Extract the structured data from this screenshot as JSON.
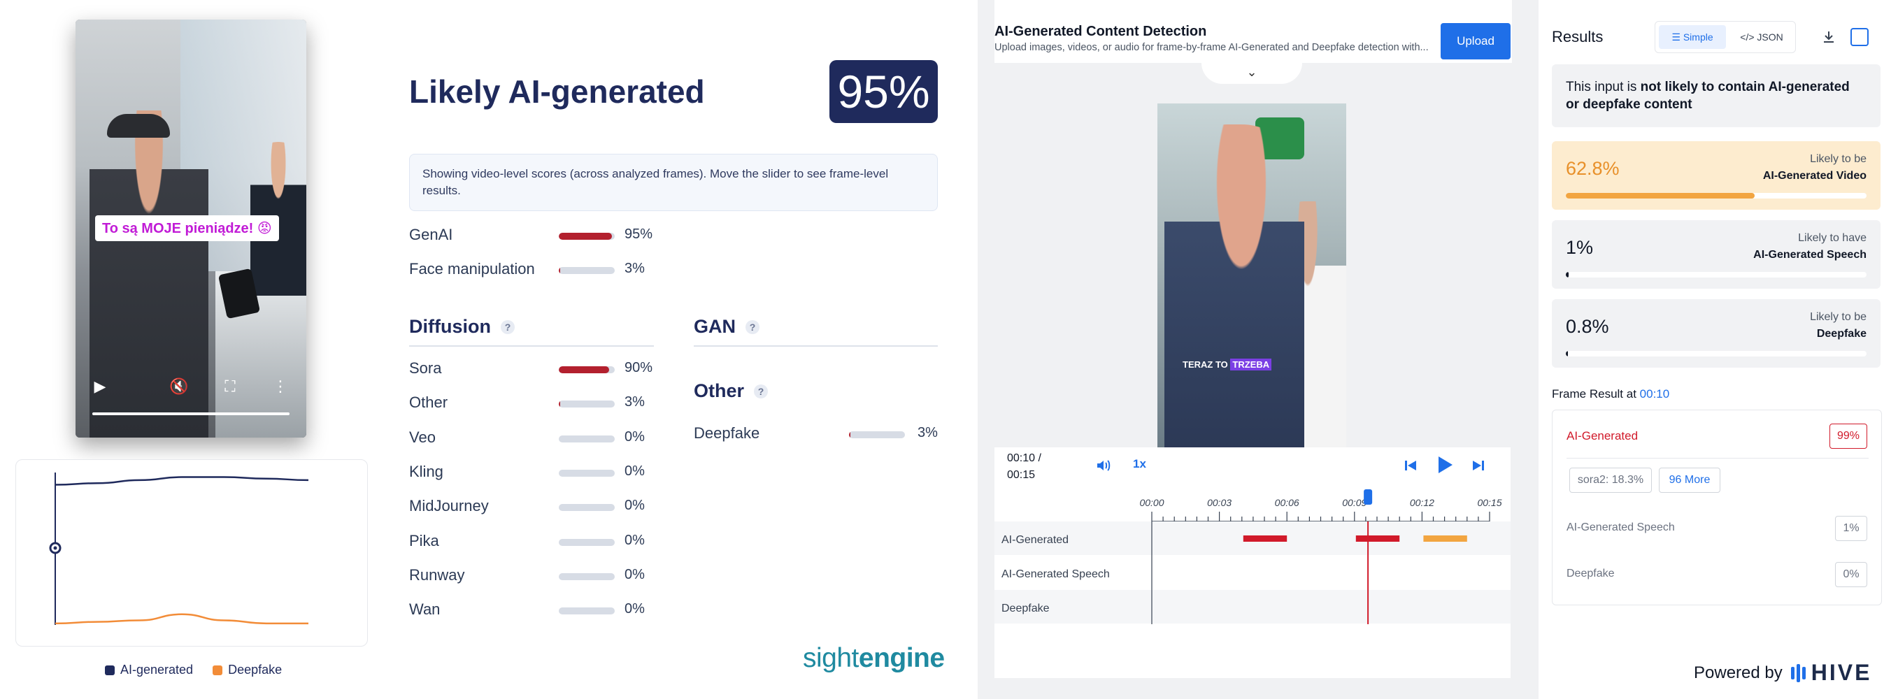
{
  "video": {
    "caption": "To są MOJE pieniądze! 😡",
    "controls": {
      "play": "▶",
      "mute": "🔇",
      "fullscreen": "⛶",
      "more": "⋮"
    },
    "progress": 1.0
  },
  "curve_chart": {
    "legend": [
      {
        "label": "AI-generated",
        "color": "#1f2a5c"
      },
      {
        "label": "Deepfake",
        "color": "#f28c38"
      }
    ],
    "series": [
      {
        "name": "AI-generated",
        "values": [
          0.92,
          0.93,
          0.95,
          0.97,
          0.97,
          0.96,
          0.95
        ]
      },
      {
        "name": "Deepfake",
        "values": [
          0.01,
          0.02,
          0.03,
          0.07,
          0.03,
          0.01,
          0.01
        ]
      }
    ]
  },
  "report": {
    "verdict": "Likely AI-generated",
    "score": "95%",
    "note": "Showing video-level scores (across analyzed frames). Move the slider to see frame-level results.",
    "overall": [
      {
        "label": "GenAI",
        "pct": "95%",
        "value": 95
      },
      {
        "label": "Face manipulation",
        "pct": "3%",
        "value": 3
      }
    ],
    "diffusion": {
      "title": "Diffusion",
      "help": "?",
      "items": [
        {
          "label": "Sora",
          "pct": "90%",
          "value": 90
        },
        {
          "label": "Other",
          "pct": "3%",
          "value": 3
        },
        {
          "label": "Veo",
          "pct": "0%",
          "value": 0
        },
        {
          "label": "Kling",
          "pct": "0%",
          "value": 0
        },
        {
          "label": "MidJourney",
          "pct": "0%",
          "value": 0
        },
        {
          "label": "Pika",
          "pct": "0%",
          "value": 0
        },
        {
          "label": "Runway",
          "pct": "0%",
          "value": 0
        },
        {
          "label": "Wan",
          "pct": "0%",
          "value": 0
        }
      ]
    },
    "gan": {
      "title": "GAN",
      "help": "?"
    },
    "other": {
      "title": "Other",
      "help": "?",
      "items": [
        {
          "label": "Deepfake",
          "pct": "3%",
          "value": 3
        }
      ]
    },
    "brand": {
      "part1": "sight",
      "part2": "engine"
    }
  },
  "app": {
    "title": "AI-Generated Content Detection",
    "subtitle": "Upload images, videos, or audio for frame-by-frame AI-Generated and Deepfake detection with...",
    "upload_label": "Upload",
    "collapse_glyph": "⌄",
    "preview_caption": {
      "part1": "TERAZ TO ",
      "part2": "TRZEBA"
    },
    "player": {
      "time_current": "00:10 /",
      "time_total": "00:15",
      "speed": "1x",
      "position": 0.64
    },
    "timeline": {
      "ticks": [
        "00:00",
        "00:03",
        "00:06",
        "00:09",
        "00:12",
        "00:15"
      ],
      "duration_s": 15,
      "tracks": [
        {
          "label": "AI-Generated",
          "segments": [
            {
              "start": 4.0,
              "end": 6.0,
              "color": "#d11a2a"
            },
            {
              "start": 9.0,
              "end": 11.0,
              "color": "#d11a2a"
            },
            {
              "start": 12.0,
              "end": 14.0,
              "color": "#f2a541"
            }
          ]
        },
        {
          "label": "AI-Generated Speech",
          "segments": []
        },
        {
          "label": "Deepfake",
          "segments": []
        }
      ]
    }
  },
  "results": {
    "title": "Results",
    "toggle_simple": "Simple",
    "toggle_json": "</> JSON",
    "summary_pre": "This input is ",
    "summary_bold": "not likely to contain AI-generated or deepfake content",
    "metrics": [
      {
        "value": "62.8%",
        "fraction": 0.628,
        "caption1": "Likely to be",
        "caption2": "AI-Generated Video",
        "color": "#f2a541",
        "bg": "#fdeccf",
        "textcolor": "#e8902a"
      },
      {
        "value": "1%",
        "fraction": 0.01,
        "caption1": "Likely to have",
        "caption2": "AI-Generated Speech",
        "color": "#111827",
        "bg": "#f1f2f4",
        "textcolor": "#111827"
      },
      {
        "value": "0.8%",
        "fraction": 0.008,
        "caption1": "Likely to be",
        "caption2": "Deepfake",
        "color": "#111827",
        "bg": "#f1f2f4",
        "textcolor": "#111827"
      }
    ],
    "frame_result_label": "Frame Result at",
    "frame_time": "00:10",
    "frame": {
      "ai_label": "AI-Generated",
      "ai_score": "99%",
      "chip_model": "sora2: 18.3%",
      "chip_more": "96 More",
      "speech_label": "AI-Generated Speech",
      "speech_score": "1%",
      "deepfake_label": "Deepfake",
      "deepfake_score": "0%"
    },
    "powered_by": "Powered by",
    "hive": "HIVE"
  }
}
